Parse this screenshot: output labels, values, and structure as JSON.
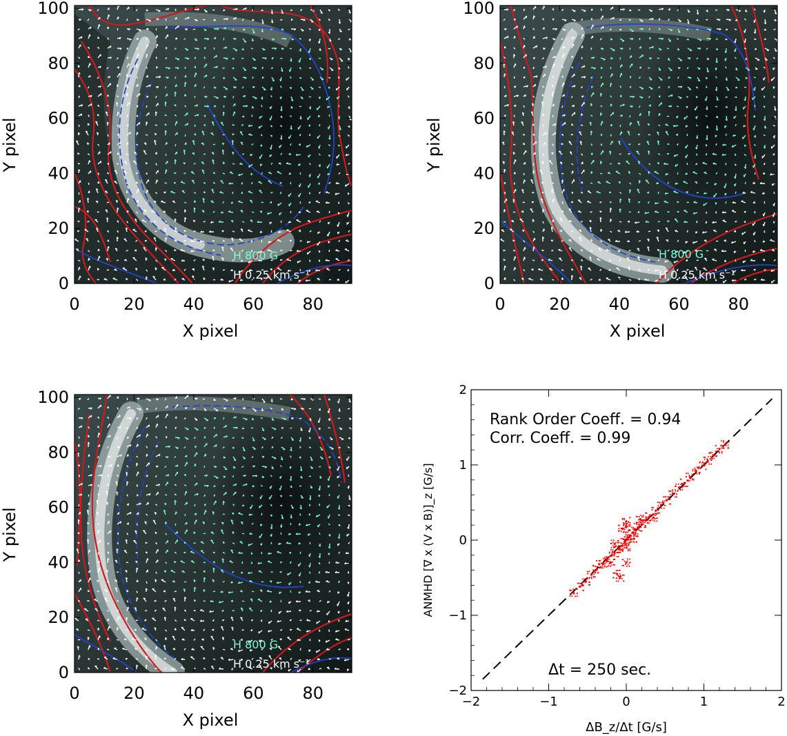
{
  "chart_data": [
    {
      "type": "heatmap",
      "id": "panel-top-left",
      "xlabel": "X pixel",
      "ylabel": "Y pixel",
      "xlim": [
        0,
        93
      ],
      "ylim": [
        0,
        101
      ],
      "xticks": [
        "0",
        "20",
        "40",
        "60",
        "80"
      ],
      "yticks": [
        "0",
        "20",
        "40",
        "60",
        "80",
        "100"
      ],
      "annotations": [
        "H 800 G",
        "H 0.25 km s⁻¹"
      ],
      "overlays": [
        "grayscale magnetogram",
        "red contours (positive polarity)",
        "blue dashed contours (negative polarity)",
        "white velocity vectors",
        "cyan field vectors"
      ]
    },
    {
      "type": "heatmap",
      "id": "panel-top-right",
      "xlabel": "X pixel",
      "ylabel": "Y pixel",
      "xlim": [
        0,
        93
      ],
      "ylim": [
        0,
        101
      ],
      "xticks": [
        "0",
        "20",
        "40",
        "60",
        "80"
      ],
      "yticks": [
        "0",
        "20",
        "40",
        "60",
        "80",
        "100"
      ],
      "annotations": [
        "H 800 G",
        "H 0.25 km s⁻¹"
      ],
      "overlays": [
        "grayscale magnetogram",
        "red contours (positive polarity)",
        "blue dashed contours (negative polarity)",
        "white velocity vectors",
        "cyan field vectors"
      ]
    },
    {
      "type": "heatmap",
      "id": "panel-bottom-left",
      "xlabel": "X pixel",
      "ylabel": "Y pixel",
      "xlim": [
        0,
        93
      ],
      "ylim": [
        0,
        101
      ],
      "xticks": [
        "0",
        "20",
        "40",
        "60",
        "80"
      ],
      "yticks": [
        "0",
        "20",
        "40",
        "60",
        "80",
        "100"
      ],
      "annotations": [
        "H 800 G",
        "H 0.25 km s⁻¹"
      ],
      "overlays": [
        "grayscale magnetogram",
        "red contours (positive polarity)",
        "blue dashed contours (negative polarity)",
        "white velocity vectors",
        "cyan field vectors"
      ]
    },
    {
      "type": "scatter",
      "id": "panel-scatter",
      "xlabel": "ΔB_z/Δt [G/s]",
      "ylabel": "ANMHD [∇ x (V x B)]_z [G/s]",
      "xlim": [
        -2,
        2
      ],
      "ylim": [
        -2,
        2
      ],
      "xticks": [
        "−2",
        "−1",
        "0",
        "1",
        "2"
      ],
      "yticks": [
        "−2",
        "−1",
        "0",
        "1",
        "2"
      ],
      "annotations": [
        "Rank Order Coeff. = 0.94",
        "Corr. Coeff. = 0.99",
        "Δt = 250 sec."
      ],
      "reference_line": {
        "slope": 1,
        "intercept": 0,
        "style": "dashed"
      },
      "point_color": "#ff0000",
      "points": {
        "x": [
          -0.68,
          -0.6,
          -0.52,
          -0.45,
          -0.38,
          -0.3,
          -0.25,
          -0.2,
          -0.15,
          -0.1,
          -0.06,
          -0.02,
          0.0,
          0.02,
          0.05,
          0.08,
          0.12,
          0.15,
          0.2,
          0.25,
          0.3,
          0.38,
          0.45,
          0.52,
          0.6,
          0.68,
          0.75,
          0.82,
          0.9,
          0.98,
          1.05,
          1.12,
          1.2,
          1.27,
          -0.12,
          -0.08,
          -0.05,
          0.0,
          0.0,
          0.0,
          0.0,
          -0.15,
          0.1,
          -0.2,
          0.18,
          -0.35,
          0.35
        ],
        "y": [
          -0.7,
          -0.62,
          -0.55,
          -0.46,
          -0.39,
          -0.32,
          -0.27,
          -0.21,
          -0.17,
          -0.12,
          -0.08,
          -0.03,
          0.0,
          0.02,
          0.06,
          0.1,
          0.13,
          0.17,
          0.21,
          0.26,
          0.31,
          0.39,
          0.47,
          0.53,
          0.62,
          0.7,
          0.76,
          0.84,
          0.92,
          0.99,
          1.06,
          1.13,
          1.21,
          1.27,
          -0.45,
          -0.5,
          0.15,
          0.25,
          -0.3,
          0.18,
          -0.1,
          -0.05,
          0.02,
          -0.3,
          0.28,
          -0.32,
          0.3
        ]
      }
    }
  ]
}
